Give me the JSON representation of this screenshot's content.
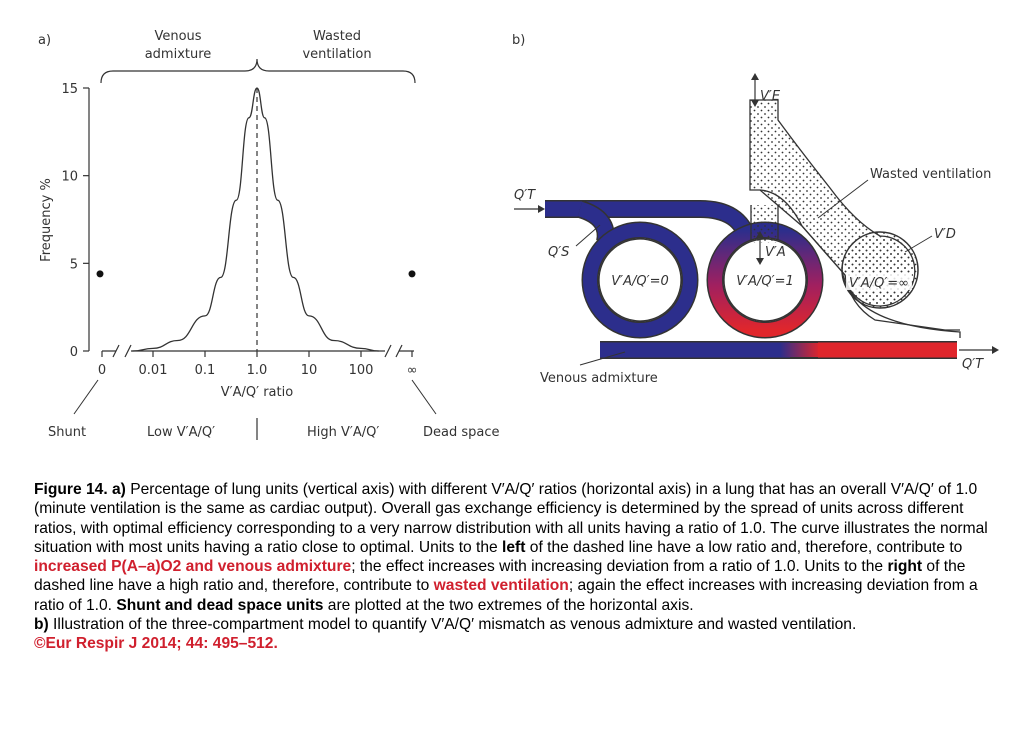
{
  "panel_a": {
    "label": "a)",
    "bracket_left": [
      "Venous",
      "admixture"
    ],
    "bracket_right": [
      "Wasted",
      "ventilation"
    ],
    "ylabel": "Frequency %",
    "xlabel": "V′A/Q′ ratio",
    "bottom_labels": {
      "shunt": "Shunt",
      "low": "Low V′A/Q′",
      "high": "High V′A/Q′",
      "dead": "Dead space"
    }
  },
  "chart_data": {
    "type": "line",
    "xscale": "log",
    "x_ticks": [
      "0",
      "0.01",
      "0.1",
      "1.0",
      "10",
      "100",
      "∞"
    ],
    "y_ticks": [
      "0",
      "5",
      "10",
      "15"
    ],
    "ylim": [
      0,
      15
    ],
    "xlabel": "V′A/Q′ ratio",
    "ylabel": "Frequency %",
    "curve": {
      "x": [
        0.004,
        0.01,
        0.03,
        0.1,
        0.2,
        0.4,
        0.7,
        1.0,
        1.4,
        2.5,
        5,
        10,
        30,
        100,
        220
      ],
      "y": [
        0,
        0.15,
        0.6,
        2.0,
        4.2,
        8.6,
        13.3,
        15.0,
        13.3,
        8.6,
        4.2,
        2.0,
        0.6,
        0.15,
        0
      ]
    },
    "points": [
      {
        "x": "0",
        "y": 4.4,
        "label": "Shunt"
      },
      {
        "x": "∞",
        "y": 4.4,
        "label": "Dead space"
      }
    ],
    "reference_line_x": 1.0,
    "grid": false
  },
  "panel_b": {
    "label": "b)",
    "qt_in": "Q′T",
    "qt_out": "Q′T",
    "qs": "Q′S",
    "ve": "V′E",
    "va": "V′A",
    "vd": "V′D",
    "unit_zero": "V′A/Q′=0",
    "unit_one": "V′A/Q′=1",
    "unit_inf": "V′A/Q′=∞",
    "wasted": "Wasted ventilation",
    "venous": "Venous admixture",
    "colors": {
      "venous": "#2c2e8c",
      "arterial": "#e0262c",
      "stroke": "#333333"
    }
  },
  "caption": {
    "fig_label": "Figure 14. a)",
    "s1": " Percentage of lung units (vertical axis) with different V′A/Q′ ratios (horizontal axis) in a lung that has an overall V′A/Q′ of 1.0 (minute ventilation is the same as cardiac output). Overall gas exchange efficiency is determined by the spread of units across different ratios, with optimal efficiency corresponding to a very narrow distribution with all units having a ratio of 1.0. The curve illustrates the normal situation with most units having a ratio close to optimal. Units to the ",
    "left": "left",
    "s2": " of the dashed line have a low ratio and, therefore, contribute to ",
    "red1": "increased P(A–a)O2 and venous admixture",
    "s3": "; the effect increases with increasing deviation from a ratio of 1.0. Units to the ",
    "right": "right",
    "s4": " of the dashed line have a high ratio and, therefore, contribute to ",
    "red2": "wasted ventilation",
    "s5": "; again the effect increases with increasing deviation from a ratio of 1.0. ",
    "bold_shunt": "Shunt and dead space units",
    "s6": " are plotted at the two extremes of the horizontal axis.",
    "b_label": "b)",
    "s7": " Illustration of the three-compartment model to quantify V′A/Q′ mismatch as venous admixture and wasted ventilation.",
    "citation": "©Eur Respir J 2014; 44: 495–512."
  }
}
